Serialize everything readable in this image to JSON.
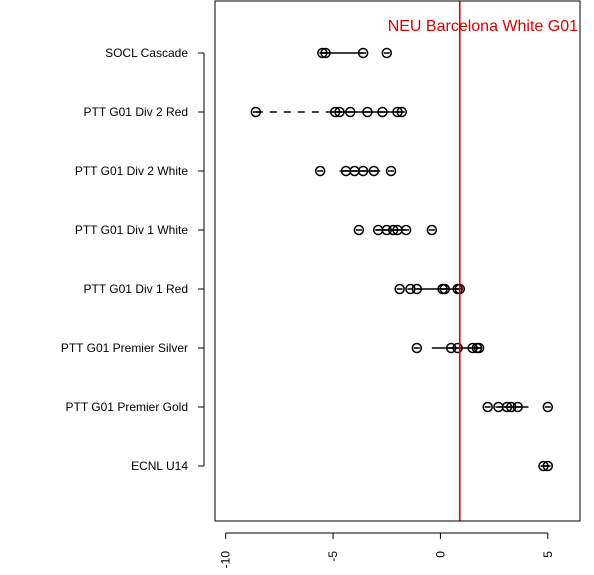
{
  "chart_data": {
    "type": "scatter",
    "title": "",
    "xlabel": "",
    "ylabel": "",
    "xlim": [
      -10.5,
      6.5
    ],
    "x_ticks": [
      -10,
      -5,
      0,
      5
    ],
    "x_tick_labels": [
      "-10",
      "-5",
      "0",
      "5"
    ],
    "reference_line": {
      "label": "NEU Barcelona White G01",
      "x": 0.9,
      "color": "#e00000"
    },
    "categories": [
      "SOCL Cascade",
      "PTT G01 Div 2 Red",
      "PTT G01 Div 2 White",
      "PTT G01 Div 1 White",
      "PTT G01 Div 1 Red",
      "PTT G01 Premier Silver",
      "PTT G01 Premier Gold",
      "ECNL U14"
    ],
    "series": [
      {
        "values": [
          [
            -5.5,
            -5.35,
            -3.6,
            -2.5
          ],
          [
            -8.6,
            -4.9,
            -4.7,
            -4.2,
            -3.4,
            -2.7,
            -2.0,
            -1.8
          ],
          [
            -5.6,
            -4.4,
            -4.0,
            -3.6,
            -3.1,
            -2.3
          ],
          [
            -3.8,
            -2.9,
            -2.5,
            -2.2,
            -2.0,
            -1.6,
            -0.4
          ],
          [
            -1.9,
            -1.4,
            -1.1,
            0.1,
            0.2,
            0.8,
            0.9
          ],
          [
            -1.1,
            0.5,
            0.8,
            1.5,
            1.7,
            1.8
          ],
          [
            2.2,
            2.7,
            3.1,
            3.3,
            3.6,
            5.0
          ],
          [
            4.8,
            5.0
          ]
        ]
      },
      {
        "values": [
          [
            -5.5,
            -3.6
          ],
          [
            -5.2,
            -1.9
          ],
          [
            -4.7,
            -2.8
          ],
          [
            -3.0,
            -1.6
          ],
          [
            -1.1,
            0.9
          ],
          [
            -0.4,
            1.8
          ],
          [
            2.7,
            4.1
          ],
          [
            4.8,
            5.0
          ]
        ]
      },
      {
        "values": [
          null,
          [
            -8.6,
            -5.2
          ],
          null,
          null,
          null,
          null,
          null,
          null
        ]
      }
    ],
    "grid": false,
    "legend": "none"
  }
}
